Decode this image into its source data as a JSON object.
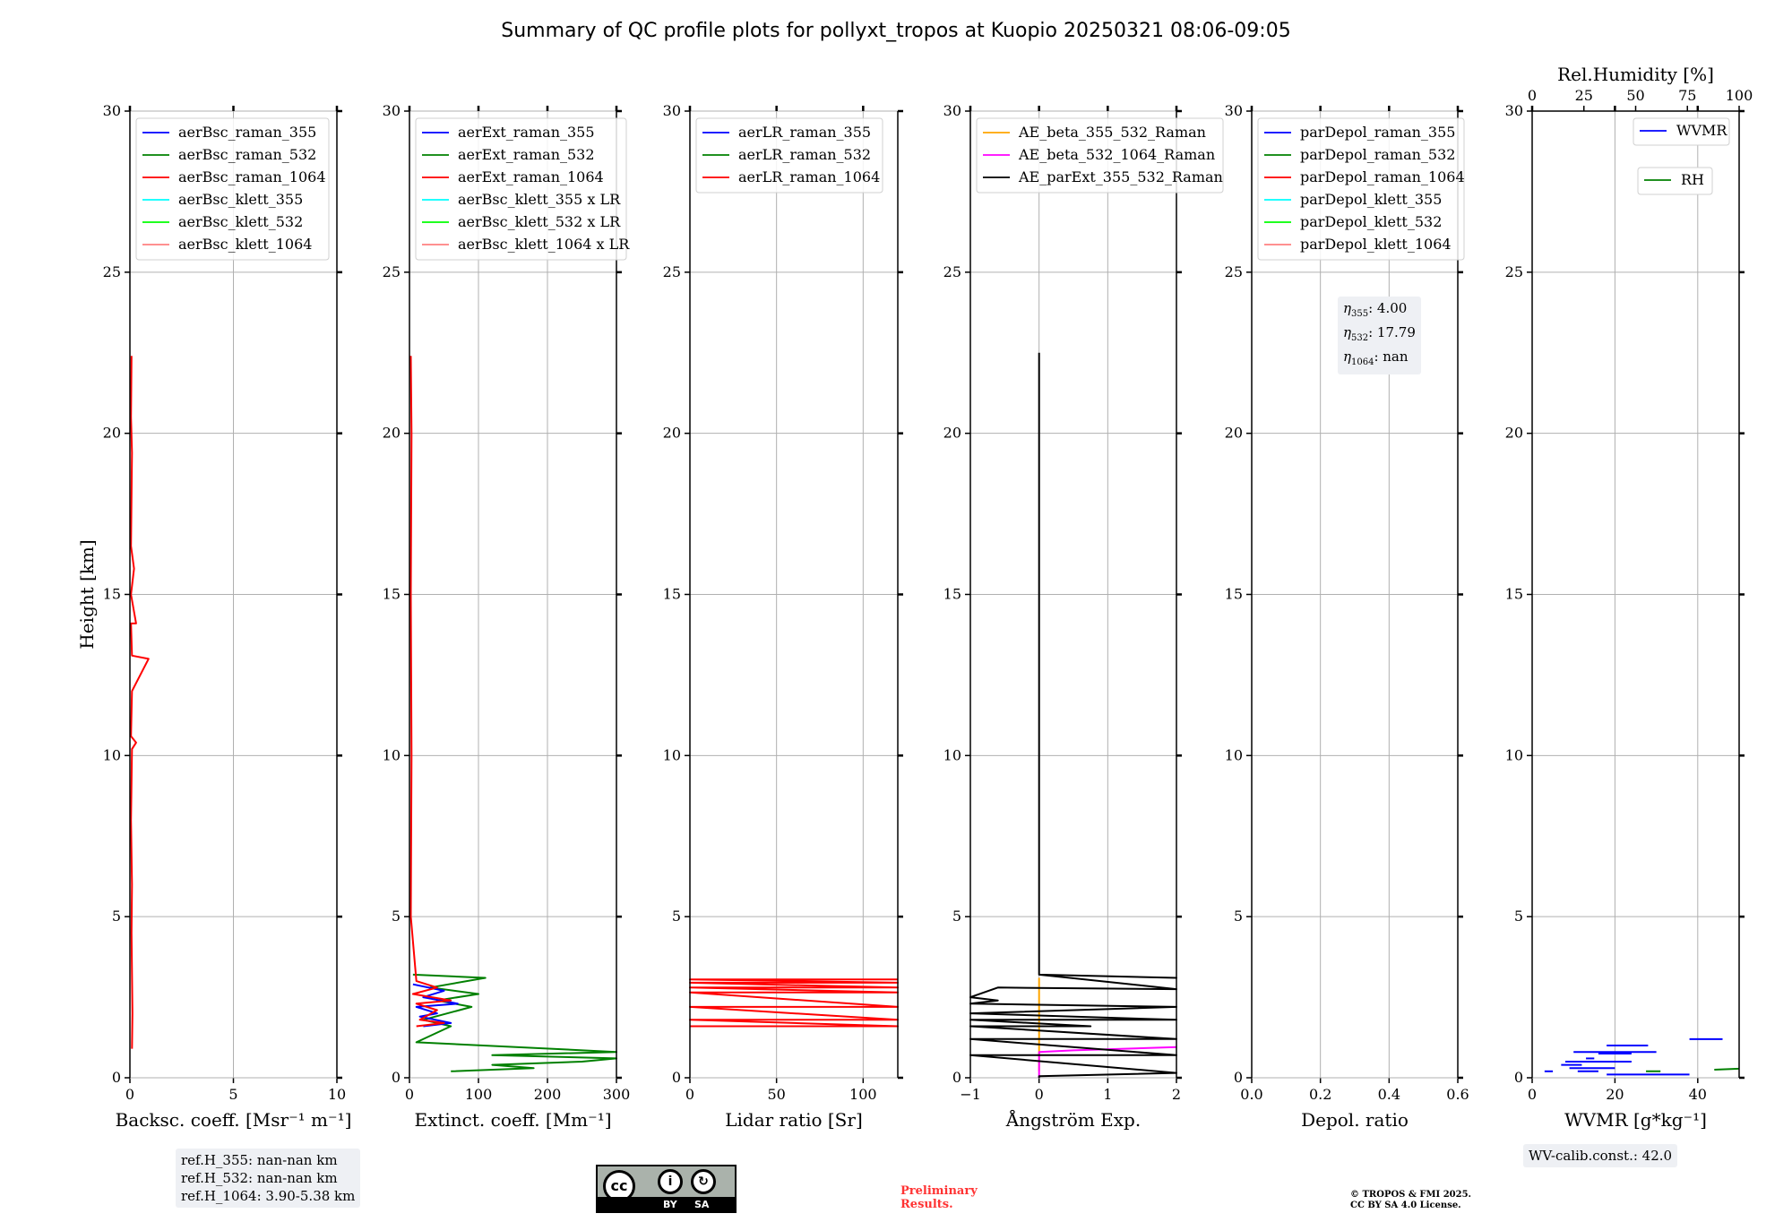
{
  "figure": {
    "title": "Summary of QC profile plots for pollyxt_tropos at Kuopio 20250321 08:06-09:05"
  },
  "notes": {
    "ref_h": [
      "ref.H_355: nan-nan km",
      "ref.H_532: nan-nan km",
      "ref.H_1064: 3.90-5.38 km"
    ],
    "eta_lines": [
      {
        "sub": "355",
        "value": ": 4.00"
      },
      {
        "sub": "532",
        "value": ": 17.79"
      },
      {
        "sub": "1064",
        "value": ": nan"
      }
    ],
    "wv_calib": "WV-calib.const.: 42.0",
    "preliminary": [
      "Preliminary",
      "Results."
    ],
    "copyright": [
      "© TROPOS & FMI 2025.",
      "CC BY SA 4.0 License."
    ],
    "license_badge": {
      "by": "BY",
      "sa": "SA",
      "cc": "cc"
    }
  },
  "colors": {
    "raman_355": "#0000ff",
    "raman_532": "#008000",
    "raman_1064": "#ff0000",
    "klett_355": "#00ffff",
    "klett_532": "#00ff00",
    "klett_1064": "#ff8080",
    "ae_beta_355_532": "#ffa500",
    "ae_beta_532_1064": "#ff00ff",
    "ae_parext": "#000000",
    "grid": "#b0b0b0",
    "note_bg": "#eef0f4",
    "preliminary": "#ff3333"
  },
  "chart_data": [
    {
      "type": "line",
      "xlabel": "Backsc. coeff. [Msr⁻¹ m⁻¹]",
      "ylabel": "Height [km]",
      "xlim": [
        0,
        10
      ],
      "ylim": [
        0,
        30
      ],
      "xticks": [
        "0",
        "5",
        "10"
      ],
      "yticks": [
        "0",
        "5",
        "10",
        "15",
        "20",
        "25",
        "30"
      ],
      "grid": true,
      "legend_position": "top-left",
      "legend": [
        "aerBsc_raman_355",
        "aerBsc_raman_532",
        "aerBsc_raman_1064",
        "aerBsc_klett_355",
        "aerBsc_klett_532",
        "aerBsc_klett_1064"
      ],
      "series": [
        {
          "name": "aerBsc_raman_1064",
          "color_key": "raman_1064",
          "points": [
            [
              0.1,
              0.9
            ],
            [
              0.12,
              2
            ],
            [
              0.08,
              4.5
            ],
            [
              0.1,
              6
            ],
            [
              0.05,
              8
            ],
            [
              0.1,
              10.2
            ],
            [
              0.3,
              10.4
            ],
            [
              0.05,
              10.6
            ],
            [
              0.1,
              12
            ],
            [
              0.9,
              13
            ],
            [
              0.1,
              13.1
            ],
            [
              0.05,
              14.1
            ],
            [
              0.3,
              14.1
            ],
            [
              0.05,
              15
            ],
            [
              0.2,
              15.8
            ],
            [
              0.05,
              16.5
            ],
            [
              0.1,
              19.4
            ],
            [
              0.05,
              20.5
            ],
            [
              0.08,
              22.4
            ]
          ]
        }
      ]
    },
    {
      "type": "line",
      "xlabel": "Extinct. coeff. [Mm⁻¹]",
      "xlim": [
        0,
        300
      ],
      "ylim": [
        0,
        30
      ],
      "xticks": [
        "0",
        "100",
        "200",
        "300"
      ],
      "yticks": [
        "0",
        "5",
        "10",
        "15",
        "20",
        "25",
        "30"
      ],
      "grid": true,
      "legend_position": "top-left",
      "legend": [
        "aerExt_raman_355",
        "aerExt_raman_532",
        "aerExt_raman_1064",
        "aerBsc_klett_355 x LR",
        "aerBsc_klett_532 x LR",
        "aerBsc_klett_1064 x LR"
      ],
      "series": [
        {
          "name": "aerExt_raman_532",
          "color_key": "raman_532",
          "points": [
            [
              60,
              0.2
            ],
            [
              180,
              0.3
            ],
            [
              120,
              0.4
            ],
            [
              250,
              0.5
            ],
            [
              300,
              0.6
            ],
            [
              120,
              0.7
            ],
            [
              300,
              0.8
            ],
            [
              10,
              1.1
            ],
            [
              60,
              1.6
            ],
            [
              20,
              1.8
            ],
            [
              90,
              2.2
            ],
            [
              40,
              2.4
            ],
            [
              100,
              2.6
            ],
            [
              30,
              2.8
            ],
            [
              110,
              3.1
            ],
            [
              5,
              3.2
            ]
          ]
        },
        {
          "name": "aerExt_raman_355",
          "color_key": "raman_355",
          "points": [
            [
              20,
              1.6
            ],
            [
              60,
              1.7
            ],
            [
              15,
              1.9
            ],
            [
              40,
              2.0
            ],
            [
              10,
              2.2
            ],
            [
              70,
              2.3
            ],
            [
              20,
              2.5
            ],
            [
              50,
              2.7
            ],
            [
              5,
              2.9
            ]
          ]
        },
        {
          "name": "aerExt_raman_1064",
          "color_key": "raman_1064",
          "points": [
            [
              10,
              1.6
            ],
            [
              50,
              1.7
            ],
            [
              15,
              1.8
            ],
            [
              40,
              2.1
            ],
            [
              10,
              2.3
            ],
            [
              60,
              2.4
            ],
            [
              5,
              2.6
            ],
            [
              40,
              2.8
            ],
            [
              10,
              3.0
            ],
            [
              2,
              5
            ],
            [
              3,
              10
            ],
            [
              2,
              15
            ],
            [
              3,
              20
            ],
            [
              2,
              22.4
            ]
          ]
        }
      ]
    },
    {
      "type": "line",
      "xlabel": "Lidar ratio [Sr]",
      "xlim": [
        0,
        120
      ],
      "ylim": [
        0,
        30
      ],
      "xticks": [
        "0",
        "50",
        "100"
      ],
      "yticks": [
        "0",
        "5",
        "10",
        "15",
        "20",
        "25",
        "30"
      ],
      "grid": true,
      "legend_position": "top-left",
      "legend": [
        "aerLR_raman_355",
        "aerLR_raman_532",
        "aerLR_raman_1064"
      ],
      "series": [
        {
          "name": "aerLR_raman_1064",
          "color_key": "raman_1064",
          "points": [
            [
              0,
              1.6
            ],
            [
              120,
              1.6
            ],
            [
              0,
              1.8
            ],
            [
              120,
              1.8
            ],
            [
              0,
              2.2
            ],
            [
              120,
              2.2
            ],
            [
              0,
              2.65
            ],
            [
              120,
              2.65
            ],
            [
              0,
              2.8
            ],
            [
              120,
              2.8
            ],
            [
              0,
              2.95
            ],
            [
              120,
              2.95
            ],
            [
              0,
              3.05
            ],
            [
              120,
              3.05
            ]
          ]
        }
      ]
    },
    {
      "type": "line",
      "xlabel": "Ångström Exp.",
      "xlim": [
        -1,
        2
      ],
      "ylim": [
        0,
        30
      ],
      "xticks": [
        "−1",
        "0",
        "1",
        "2"
      ],
      "yticks": [
        "0",
        "5",
        "10",
        "15",
        "20",
        "25",
        "30"
      ],
      "grid": true,
      "legend_position": "top-left",
      "legend": [
        "AE_beta_355_532_Raman",
        "AE_beta_532_1064_Raman",
        "AE_parExt_355_532_Raman"
      ],
      "series": [
        {
          "name": "AE_beta_355_532_Raman",
          "color_key": "ae_beta_355_532",
          "points": [
            [
              0,
              0.2
            ],
            [
              0,
              3.1
            ]
          ]
        },
        {
          "name": "AE_beta_532_1064_Raman",
          "color_key": "ae_beta_532_1064",
          "points": [
            [
              0,
              0
            ],
            [
              0,
              0.8
            ],
            [
              0.5,
              0.85
            ],
            [
              2,
              0.95
            ]
          ]
        },
        {
          "name": "AE_parExt_355_532_Raman",
          "color_key": "ae_parext",
          "points": [
            [
              0,
              0
            ],
            [
              0,
              0.05
            ],
            [
              2,
              0.15
            ],
            [
              -1,
              0.7
            ],
            [
              2,
              0.7
            ],
            [
              -1,
              1.2
            ],
            [
              2,
              1.2
            ],
            [
              -1,
              1.6
            ],
            [
              0.75,
              1.6
            ],
            [
              -1,
              1.8
            ],
            [
              2,
              1.8
            ],
            [
              -1,
              2.0
            ],
            [
              2,
              2.2
            ],
            [
              -1,
              2.3
            ],
            [
              -0.6,
              2.4
            ],
            [
              -1,
              2.5
            ],
            [
              -0.6,
              2.8
            ],
            [
              2,
              2.75
            ],
            [
              0,
              3.2
            ],
            [
              2,
              3.1
            ],
            [
              0,
              3.2
            ],
            [
              0,
              22.5
            ]
          ]
        }
      ]
    },
    {
      "type": "line",
      "xlabel": "Depol. ratio",
      "xlim": [
        0,
        0.6
      ],
      "ylim": [
        0,
        30
      ],
      "xticks": [
        "0.0",
        "0.2",
        "0.4",
        "0.6"
      ],
      "yticks": [
        "0",
        "5",
        "10",
        "15",
        "20",
        "25",
        "30"
      ],
      "grid": true,
      "legend_position": "top-left",
      "legend": [
        "parDepol_raman_355",
        "parDepol_raman_532",
        "parDepol_raman_1064",
        "parDepol_klett_355",
        "parDepol_klett_532",
        "parDepol_klett_1064"
      ],
      "series": []
    },
    {
      "type": "line",
      "xlabel": "WVMR [g*kg⁻¹]",
      "x2label": "Rel.Humidity [%]",
      "xlim": [
        0,
        50
      ],
      "x2lim": [
        0,
        100
      ],
      "ylim": [
        0,
        30
      ],
      "xticks": [
        "0",
        "20",
        "40"
      ],
      "x2ticks": [
        "0",
        "25",
        "50",
        "75",
        "100"
      ],
      "yticks": [
        "0",
        "5",
        "10",
        "15",
        "20",
        "25",
        "30"
      ],
      "grid": true,
      "legend_position": "top-right",
      "legend": [
        "WVMR",
        "RH"
      ],
      "series": [
        {
          "name": "WVMR",
          "color_key": "raman_355",
          "segments": [
            [
              [
                18,
                1.0
              ],
              [
                28,
                1.0
              ]
            ],
            [
              [
                10,
                0.8
              ],
              [
                30,
                0.8
              ]
            ],
            [
              [
                16,
                0.75
              ],
              [
                24,
                0.75
              ]
            ],
            [
              [
                13,
                0.6
              ],
              [
                15,
                0.6
              ]
            ],
            [
              [
                8,
                0.5
              ],
              [
                24,
                0.5
              ]
            ],
            [
              [
                7,
                0.4
              ],
              [
                12,
                0.4
              ]
            ],
            [
              [
                9,
                0.3
              ],
              [
                20,
                0.3
              ]
            ],
            [
              [
                3,
                0.2
              ],
              [
                5,
                0.2
              ]
            ],
            [
              [
                11,
                0.2
              ],
              [
                16,
                0.2
              ]
            ],
            [
              [
                18,
                0.1
              ],
              [
                38,
                0.1
              ]
            ],
            [
              [
                38,
                1.2
              ],
              [
                46,
                1.2
              ]
            ]
          ]
        },
        {
          "name": "RH",
          "color_key": "raman_532",
          "segments": [
            [
              [
                88,
                0.25
              ],
              [
                100,
                0.28
              ]
            ],
            [
              [
                55,
                0.2
              ],
              [
                62,
                0.2
              ]
            ]
          ]
        }
      ]
    }
  ]
}
